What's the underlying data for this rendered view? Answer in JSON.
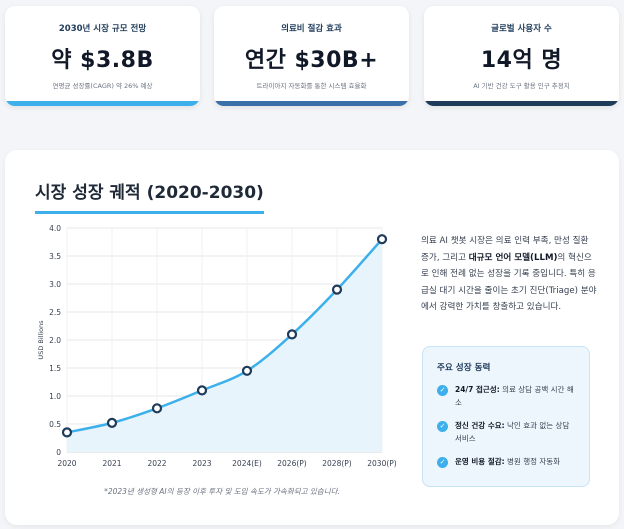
{
  "stats": [
    {
      "label": "2030년 시장 규모 전망",
      "value": "약 $3.8B",
      "sub": "연평균 성장률(CAGR) 약 26% 예상",
      "accent": "#3db0ec"
    },
    {
      "label": "의료비 절감 효과",
      "value": "연간 $30B+",
      "sub": "트라이아지 자동화를 통한 시스템 효율화",
      "accent": "#3a6fa8"
    },
    {
      "label": "글로벌 사용자 수",
      "value": "14억 명",
      "sub": "AI 기반 건강 도구 활용 인구 추정치",
      "accent": "#1f3b5a"
    }
  ],
  "section": {
    "title": "시장 성장 궤적 (2020-2030)",
    "caption": "*2023년 생성형 AI의 등장 이후 투자 및 도입 속도가 가속화되고 있습니다."
  },
  "description": {
    "part1": "의료 AI 챗봇 시장은 의료 인력 부족, 만성 질환 증가, 그리고 ",
    "bold": "대규모 언어 모델(LLM)",
    "part2": "의 혁신으로 인해 전례 없는 성장을 기록 중입니다. 특히 응급실 대기 시간을 줄이는 초기 진단(Triage) 분야에서 강력한 가치를 창출하고 있습니다."
  },
  "drivers": {
    "title": "주요 성장 동력",
    "items": [
      {
        "bold": "24/7 접근성:",
        "text": " 의료 상담 공백 시간 해소"
      },
      {
        "bold": "정신 건강 수요:",
        "text": " 낙인 효과 없는 상담 서비스"
      },
      {
        "bold": "운영 비용 절감:",
        "text": " 병원 행정 자동화"
      }
    ]
  },
  "chart_data": {
    "type": "line",
    "categories": [
      "2020",
      "2021",
      "2022",
      "2023",
      "2024(E)",
      "2026(P)",
      "2028(P)",
      "2030(P)"
    ],
    "series": [
      {
        "values": [
          0.35,
          0.52,
          0.78,
          1.1,
          1.45,
          2.1,
          2.9,
          3.8
        ]
      }
    ],
    "title": "",
    "xlabel": "",
    "ylabel": "USD Billions",
    "yticks": [
      "0",
      "0.5",
      "1.0",
      "1.5",
      "2.0",
      "2.5",
      "3.0",
      "3.5",
      "4.0"
    ],
    "ylim": [
      0,
      4
    ],
    "grid": true,
    "line_color": "#3db0ec",
    "fill_color": "#e7f4fc",
    "marker_stroke": "#1f3b5a"
  }
}
